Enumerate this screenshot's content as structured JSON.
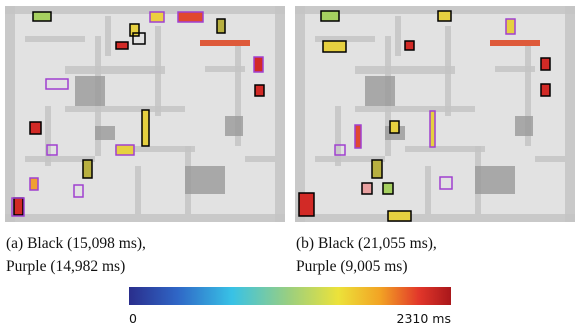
{
  "captions": [
    {
      "line1": "(a) Black (15,098 ms),",
      "line2": "Purple (14,982 ms)"
    },
    {
      "line1": "(b) Black (21,055 ms),",
      "line2": "Purple (9,005 ms)"
    }
  ],
  "colorbar": {
    "min_label": "0",
    "max_label": "2310 ms"
  }
}
